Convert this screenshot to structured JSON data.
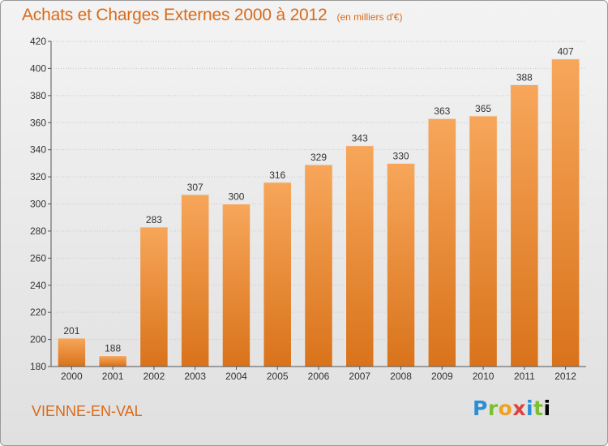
{
  "header": {
    "title": "Achats et Charges Externes 2000 à 2012",
    "unit": "(en milliers d'€)"
  },
  "footer": {
    "commune": "VIENNE-EN-VAL",
    "logo": "Proxiti"
  },
  "colors": {
    "accent": "#d96a1a",
    "bar_top": "#f7a65a",
    "bar_bottom": "#d9731b"
  },
  "chart_data": {
    "type": "bar",
    "title": "Achats et Charges Externes 2000 à 2012",
    "subtitle": "(en milliers d'€)",
    "xlabel": "",
    "ylabel": "",
    "categories": [
      "2000",
      "2001",
      "2002",
      "2003",
      "2004",
      "2005",
      "2006",
      "2007",
      "2008",
      "2009",
      "2010",
      "2011",
      "2012"
    ],
    "values": [
      201,
      188,
      283,
      307,
      300,
      316,
      329,
      343,
      330,
      363,
      365,
      388,
      407
    ],
    "ylim": [
      180,
      420
    ],
    "yticks": [
      180,
      200,
      220,
      240,
      260,
      280,
      300,
      320,
      340,
      360,
      380,
      400,
      420
    ],
    "grid": true,
    "legend": "none"
  }
}
